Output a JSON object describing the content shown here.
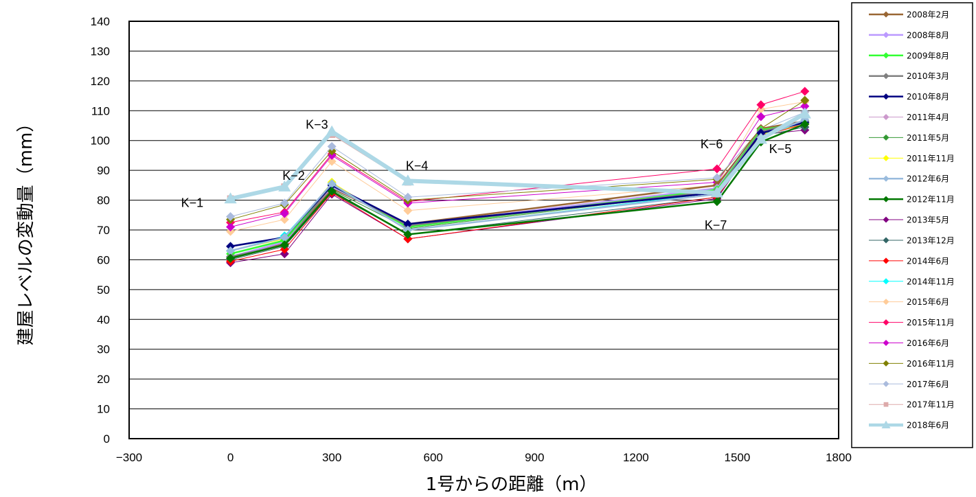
{
  "chart_data": {
    "type": "line",
    "xlabel": "1号からの距離（m）",
    "ylabel": "建屋レベルの変動量（mm）",
    "xlim": [
      -300,
      1800
    ],
    "ylim": [
      0,
      140
    ],
    "xticks": [
      -300,
      0,
      300,
      600,
      900,
      1200,
      1500,
      1800
    ],
    "yticks": [
      0,
      10,
      20,
      30,
      40,
      50,
      60,
      70,
      80,
      90,
      100,
      110,
      120,
      130,
      140
    ],
    "grid": "horizontal",
    "legend_position": "right",
    "x": [
      0,
      160,
      300,
      525,
      1440,
      1570,
      1700
    ],
    "annotations": [
      {
        "text": "K−1",
        "x": 0,
        "y": 80
      },
      {
        "text": "K−2",
        "x": 160,
        "y": 84
      },
      {
        "text": "K−3",
        "x": 300,
        "y": 103
      },
      {
        "text": "K−4",
        "x": 525,
        "y": 86
      },
      {
        "text": "K−6",
        "x": 1440,
        "y": 87
      },
      {
        "text": "K−5",
        "x": 1700,
        "y": 105
      },
      {
        "text": "K−7",
        "x": 1440,
        "y": 79
      }
    ],
    "series": [
      {
        "name": "2008年2月",
        "color": "#996633",
        "marker": "diamond",
        "width": 2.5,
        "values": [
          60.5,
          65.5,
          84,
          72,
          85,
          104,
          106.5
        ]
      },
      {
        "name": "2008年8月",
        "color": "#bb99ff",
        "marker": "diamond",
        "width": 2.5,
        "values": [
          61,
          66,
          84.5,
          71.5,
          84,
          103.5,
          106
        ]
      },
      {
        "name": "2009年8月",
        "color": "#33ff33",
        "marker": "diamond",
        "width": 2.5,
        "values": [
          62,
          66.5,
          85,
          71,
          83.5,
          103.5,
          106
        ]
      },
      {
        "name": "2010年3月",
        "color": "#808080",
        "marker": "diamond",
        "width": 2.5,
        "values": [
          61,
          65,
          85,
          71.5,
          83,
          103,
          106.5
        ]
      },
      {
        "name": "2010年8月",
        "color": "#000080",
        "marker": "diamond",
        "width": 2.5,
        "values": [
          64.5,
          67.5,
          85,
          72,
          82.5,
          102.5,
          106
        ]
      },
      {
        "name": "2011年4月",
        "color": "#cc99cc",
        "marker": "diamond",
        "width": 1,
        "values": [
          61,
          65.5,
          83.5,
          70.5,
          83,
          102.5,
          106
        ]
      },
      {
        "name": "2011年5月",
        "color": "#339933",
        "marker": "diamond",
        "width": 1,
        "values": [
          61,
          65.5,
          83.5,
          70.5,
          83,
          102,
          106
        ]
      },
      {
        "name": "2011年11月",
        "color": "#ffff00",
        "marker": "diamond",
        "width": 1,
        "values": [
          63,
          67,
          86,
          70,
          82.5,
          102,
          105.5
        ]
      },
      {
        "name": "2012年6月",
        "color": "#99bbdd",
        "marker": "diamond",
        "width": 2.5,
        "values": [
          63,
          67.5,
          85.5,
          70,
          82,
          101,
          107
        ]
      },
      {
        "name": "2012年11月",
        "color": "#007700",
        "marker": "diamond",
        "width": 2.5,
        "values": [
          60.5,
          65,
          83,
          68.5,
          79.5,
          99.5,
          105.5
        ]
      },
      {
        "name": "2013年5月",
        "color": "#800080",
        "marker": "diamond",
        "width": 1,
        "values": [
          59,
          62,
          82,
          67,
          80.5,
          102,
          103.5
        ]
      },
      {
        "name": "2013年12月",
        "color": "#336666",
        "marker": "diamond",
        "width": 1,
        "values": [
          60,
          64.5,
          82.5,
          68.5,
          81,
          101.5,
          104.5
        ]
      },
      {
        "name": "2014年6月",
        "color": "#ff0000",
        "marker": "diamond",
        "width": 1,
        "values": [
          59.5,
          63.5,
          82.5,
          67,
          81,
          101.5,
          105.5
        ]
      },
      {
        "name": "2014年11月",
        "color": "#00ffff",
        "marker": "diamond",
        "width": 1,
        "values": [
          63,
          68,
          85.5,
          70,
          82.5,
          101,
          106.5
        ]
      },
      {
        "name": "2015年6月",
        "color": "#ffcc99",
        "marker": "diamond",
        "width": 1,
        "values": [
          69.5,
          73.5,
          93,
          76.5,
          85,
          110.5,
          113
        ]
      },
      {
        "name": "2015年11月",
        "color": "#ff0066",
        "marker": "diamond",
        "width": 1,
        "values": [
          72.5,
          76,
          95.5,
          79.5,
          90.5,
          112,
          116.5
        ]
      },
      {
        "name": "2016年6月",
        "color": "#cc00cc",
        "marker": "diamond",
        "width": 1,
        "values": [
          71,
          75.5,
          95,
          79,
          86,
          108,
          111.5
        ]
      },
      {
        "name": "2016年11月",
        "color": "#808000",
        "marker": "diamond",
        "width": 1,
        "values": [
          73.5,
          78.5,
          96.5,
          80,
          87,
          104,
          113.5
        ]
      },
      {
        "name": "2017年6月",
        "color": "#aabbdd",
        "marker": "diamond",
        "width": 1,
        "values": [
          74.5,
          79,
          98,
          81,
          87.5,
          103.5,
          109.5
        ]
      },
      {
        "name": "2017年11月",
        "color": "#ddaaaa",
        "marker": "square",
        "width": 1,
        "values": [
          80.5,
          84.5,
          102,
          86,
          82.5,
          101,
          108.5
        ]
      },
      {
        "name": "2018年6月",
        "color": "#add8e6",
        "marker": "triangle",
        "width": 6,
        "values": [
          80.5,
          84.5,
          103,
          86.5,
          82.5,
          100.5,
          109
        ]
      }
    ]
  }
}
